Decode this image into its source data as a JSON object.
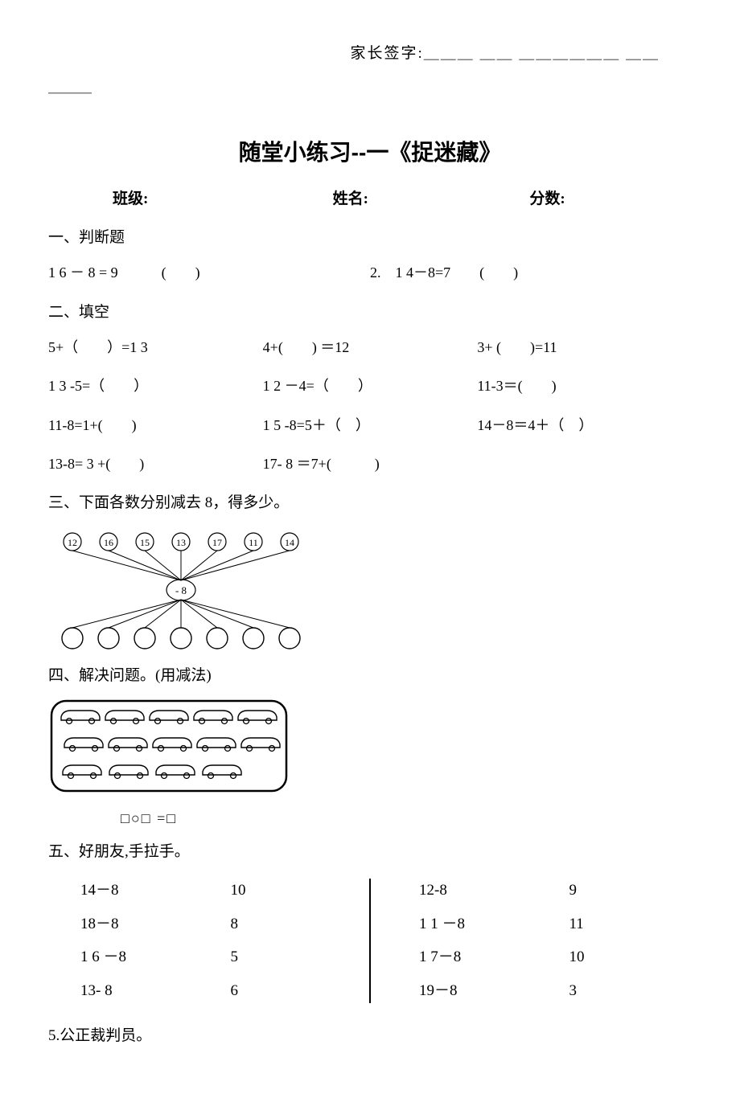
{
  "header": {
    "signature_label": "家长签字:",
    "signature_blank": "＿＿＿ ＿＿ ＿＿＿＿＿＿ ＿＿",
    "signature_blank2": "＿＿＿"
  },
  "title": "随堂小练习--一《捉迷藏》",
  "info": {
    "class_label": "班级:",
    "name_label": "姓名:",
    "score_label": "分数:"
  },
  "s1": {
    "head": "一、判断题",
    "q1": "1 6 － 8 = 9　　　(　　)",
    "q2": "2.　1 4－8=7　　(　　)"
  },
  "s2": {
    "head": "二、填空",
    "r1a": "5+（　　）=1 3",
    "r1b": "4+(　　) ＝12",
    "r1c": "3+ (　　)=11",
    "r2a": "1 3 -5=（　　）",
    "r2b": "1 2 －4=（　　）",
    "r2c": "11-3＝(　　)",
    "r3a": "11-8=1+(　　)",
    "r3b": "1 5 -8=5＋（　）",
    "r3c": "14－8＝4＋（　）",
    "r4a": "13-8= 3 +(　　)",
    "r4b": "17- 8 ＝7+(　　　)"
  },
  "s3": {
    "head": "三、下面各数分别减去 8，得多少。",
    "top_values": [
      "12",
      "16",
      "15",
      "13",
      "17",
      "11",
      "14"
    ],
    "center": "- 8"
  },
  "s4": {
    "head": "四、解决问题。(用减法)",
    "eq": "□○□ =□"
  },
  "s5": {
    "head": "五、好朋友,手拉手。",
    "left": [
      {
        "l": "14－8",
        "r": "10"
      },
      {
        "l": "18－8",
        "r": "8"
      },
      {
        "l": "1 6 －8",
        "r": "5"
      },
      {
        "l": "13- 8",
        "r": "6"
      }
    ],
    "right": [
      {
        "l": "12-8",
        "r": "9"
      },
      {
        "l": "1 1 －8",
        "r": "11"
      },
      {
        "l": "1 7－8",
        "r": "10"
      },
      {
        "l": "19－8",
        "r": "3"
      }
    ]
  },
  "s6": {
    "head": "5.公正裁判员。"
  },
  "colors": {
    "text": "#000000",
    "bg": "#ffffff",
    "stroke": "#000000"
  }
}
